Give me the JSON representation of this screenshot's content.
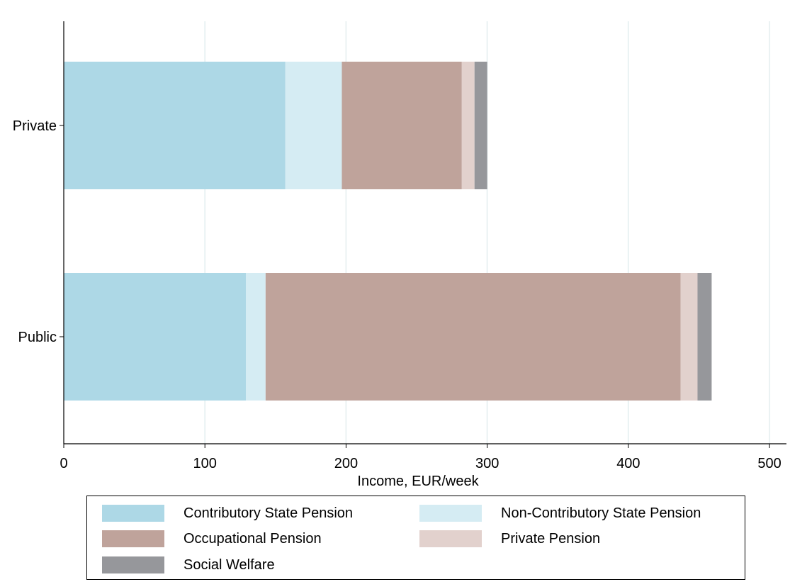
{
  "chart_data": {
    "type": "bar",
    "orientation": "horizontal",
    "stacked": true,
    "categories": [
      "Private",
      "Public"
    ],
    "series": [
      {
        "name": "Contributory State Pension",
        "color": "#add8e6",
        "values": [
          157,
          129
        ]
      },
      {
        "name": "Non-Contributory State Pension",
        "color": "#d5ecf3",
        "values": [
          40,
          14
        ]
      },
      {
        "name": "Occupational Pension",
        "color": "#bfa39b",
        "values": [
          85,
          294
        ]
      },
      {
        "name": "Private Pension",
        "color": "#e2d1cd",
        "values": [
          9,
          12
        ]
      },
      {
        "name": "Social Welfare",
        "color": "#96979b",
        "values": [
          9,
          10
        ]
      }
    ],
    "xlabel": "Income, EUR/week",
    "ylabel": "",
    "xlim": [
      0,
      512
    ],
    "xticks": [
      0,
      100,
      200,
      300,
      400,
      500
    ],
    "grid": true,
    "legend_position": "bottom"
  }
}
